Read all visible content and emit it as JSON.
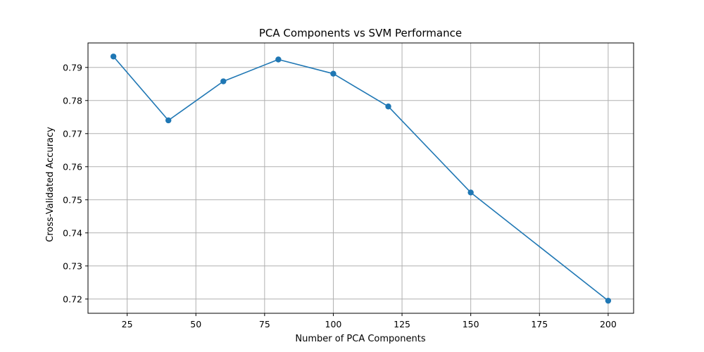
{
  "chart_data": {
    "type": "line",
    "title": "PCA Components vs SVM Performance",
    "xlabel": "Number of PCA Components",
    "ylabel": "Cross-Validated Accuracy",
    "xlim": [
      10.75,
      209.25
    ],
    "ylim": [
      0.7157,
      0.7974
    ],
    "xticks": [
      25,
      50,
      75,
      100,
      125,
      150,
      175,
      200
    ],
    "yticks": [
      0.72,
      0.73,
      0.74,
      0.75,
      0.76,
      0.77,
      0.78,
      0.79
    ],
    "xtick_labels": [
      "25",
      "50",
      "75",
      "100",
      "125",
      "150",
      "175",
      "200"
    ],
    "ytick_labels": [
      "0.72",
      "0.73",
      "0.74",
      "0.75",
      "0.76",
      "0.77",
      "0.78",
      "0.79"
    ],
    "grid": true,
    "markers": true,
    "series": [
      {
        "x": [
          20,
          40,
          60,
          80,
          100,
          120,
          150,
          200
        ],
        "values": [
          0.7933,
          0.774,
          0.7858,
          0.7924,
          0.7881,
          0.7782,
          0.7522,
          0.7195
        ],
        "color": "#1f77b4"
      }
    ]
  }
}
